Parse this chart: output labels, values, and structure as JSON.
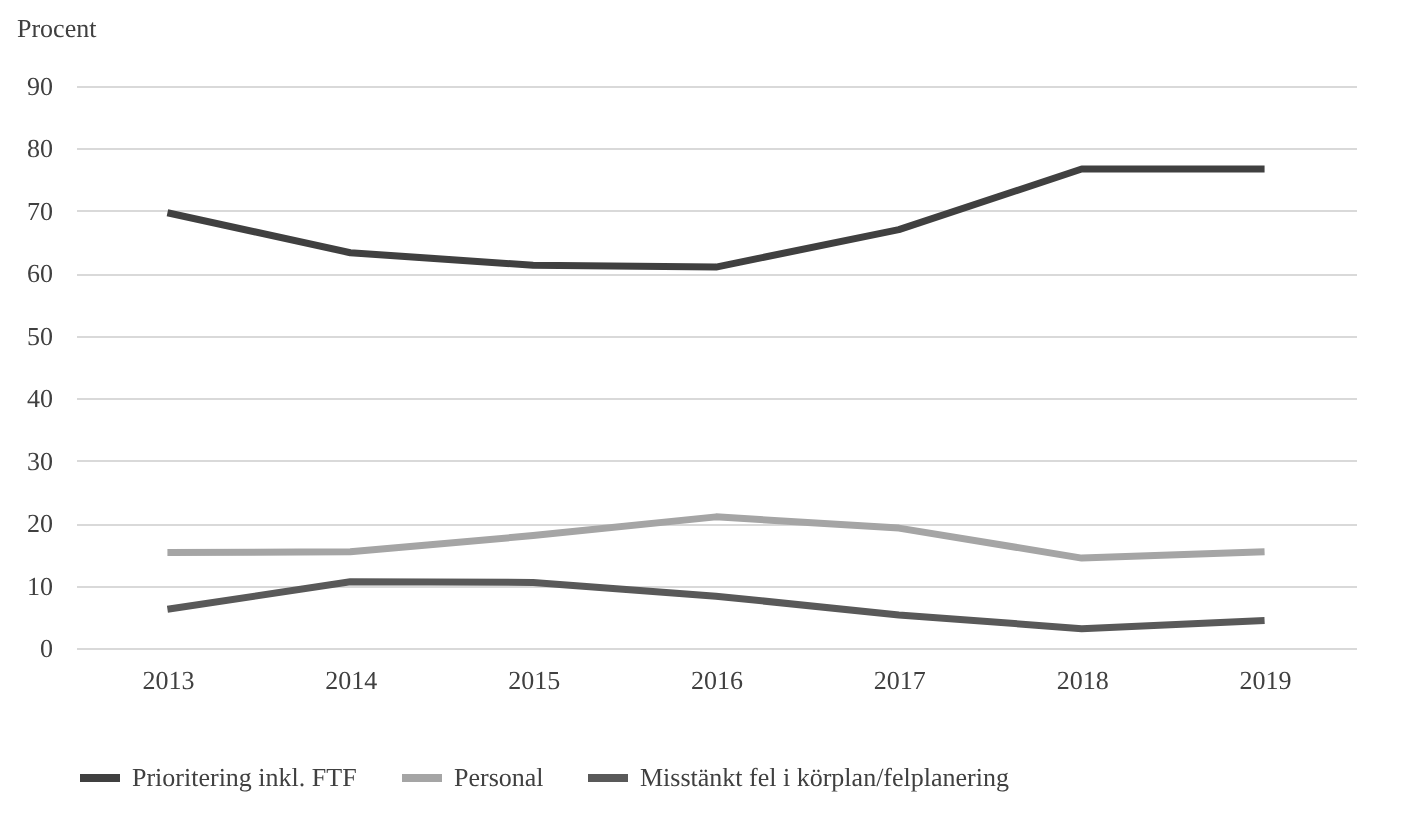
{
  "chart_data": {
    "type": "line",
    "ylabel": "Procent",
    "categories": [
      "2013",
      "2014",
      "2015",
      "2016",
      "2017",
      "2018",
      "2019"
    ],
    "series": [
      {
        "name": "Prioritering inkl. FTF",
        "color": "#404040",
        "values": [
          69.7,
          63.3,
          61.3,
          61,
          67,
          76.7,
          76.7
        ]
      },
      {
        "name": "Personal",
        "color": "#a5a5a5",
        "values": [
          15.3,
          15.4,
          18,
          21,
          19.2,
          14.4,
          15.4
        ]
      },
      {
        "name": "Misstänkt fel i körplan/felplanering",
        "color": "#595959",
        "values": [
          6.2,
          10.6,
          10.5,
          8.3,
          5.3,
          3.1,
          4.4
        ]
      }
    ],
    "ylim": [
      0,
      90
    ],
    "yticks": [
      0,
      10,
      20,
      30,
      40,
      50,
      60,
      70,
      80,
      90
    ],
    "grid": "y",
    "legend": "bottom",
    "marker": "none",
    "line_style": "solid"
  }
}
